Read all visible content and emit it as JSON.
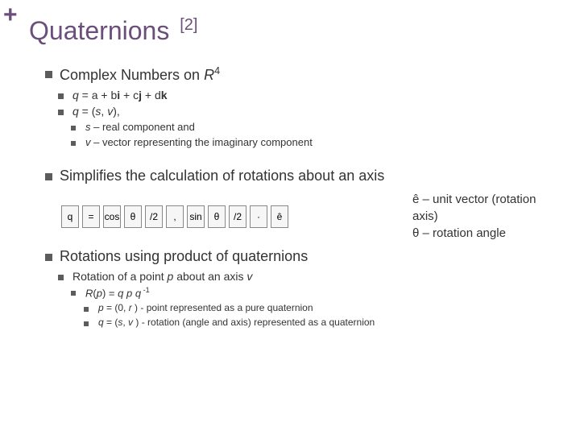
{
  "colors": {
    "accent": "#6b4f7a",
    "bullet": "#5c5c5c",
    "text": "#333333"
  },
  "plus": "+",
  "title": {
    "main": "Quaternions",
    "ref": "[2]"
  },
  "s1": {
    "heading_pre": "Complex Numbers on ",
    "heading_r": "R",
    "heading_sup": "4",
    "i1_q": "q",
    "i1_eq": " = a + b",
    "i1_i": "i",
    "i1_mid": " + c",
    "i1_j": "j",
    "i1_mid2": " + d",
    "i1_k": "k",
    "i2_q": "q",
    "i2_rest": " = (",
    "i2_s": "s",
    "i2_c": ", ",
    "i2_v": "v",
    "i2_end": "),",
    "i2a_s": "s",
    "i2a_rest": " – real component and",
    "i2b_v": "v",
    "i2b_rest": " – vector representing the imaginary component"
  },
  "s2": {
    "heading": "Simplifies the calculation of rotations about an axis",
    "annot1": "ê – unit vector (rotation axis)",
    "annot2": "θ – rotation angle",
    "formula_cells": [
      "q",
      "=",
      "cos",
      "θ",
      "/2",
      ",",
      "sin",
      "θ",
      "/2",
      "·",
      "ê"
    ]
  },
  "s3": {
    "heading": "Rotations using product of quaternions",
    "i1_pre": "Rotation of a point ",
    "i1_p": "p",
    "i1_mid": " about an axis ",
    "i1_v": "v",
    "r1_R": "R",
    "r1_open": "(",
    "r1_p": "p",
    "r1_mid": ") = ",
    "r1_q1": "q",
    "r1_sp": " ",
    "r1_pp": "p",
    "r1_sp2": " ",
    "r1_q2": "q",
    "r1_exp": " -1",
    "r2_p": "p",
    "r2_mid": " = (0, ",
    "r2_r": "r",
    "r2_end": " ) - point represented as a pure quaternion",
    "r3_q": "q",
    "r3_mid": " = (",
    "r3_s": "s",
    "r3_c": ", ",
    "r3_v": "v",
    "r3_end": " ) - rotation (angle and axis) represented as a quaternion"
  }
}
